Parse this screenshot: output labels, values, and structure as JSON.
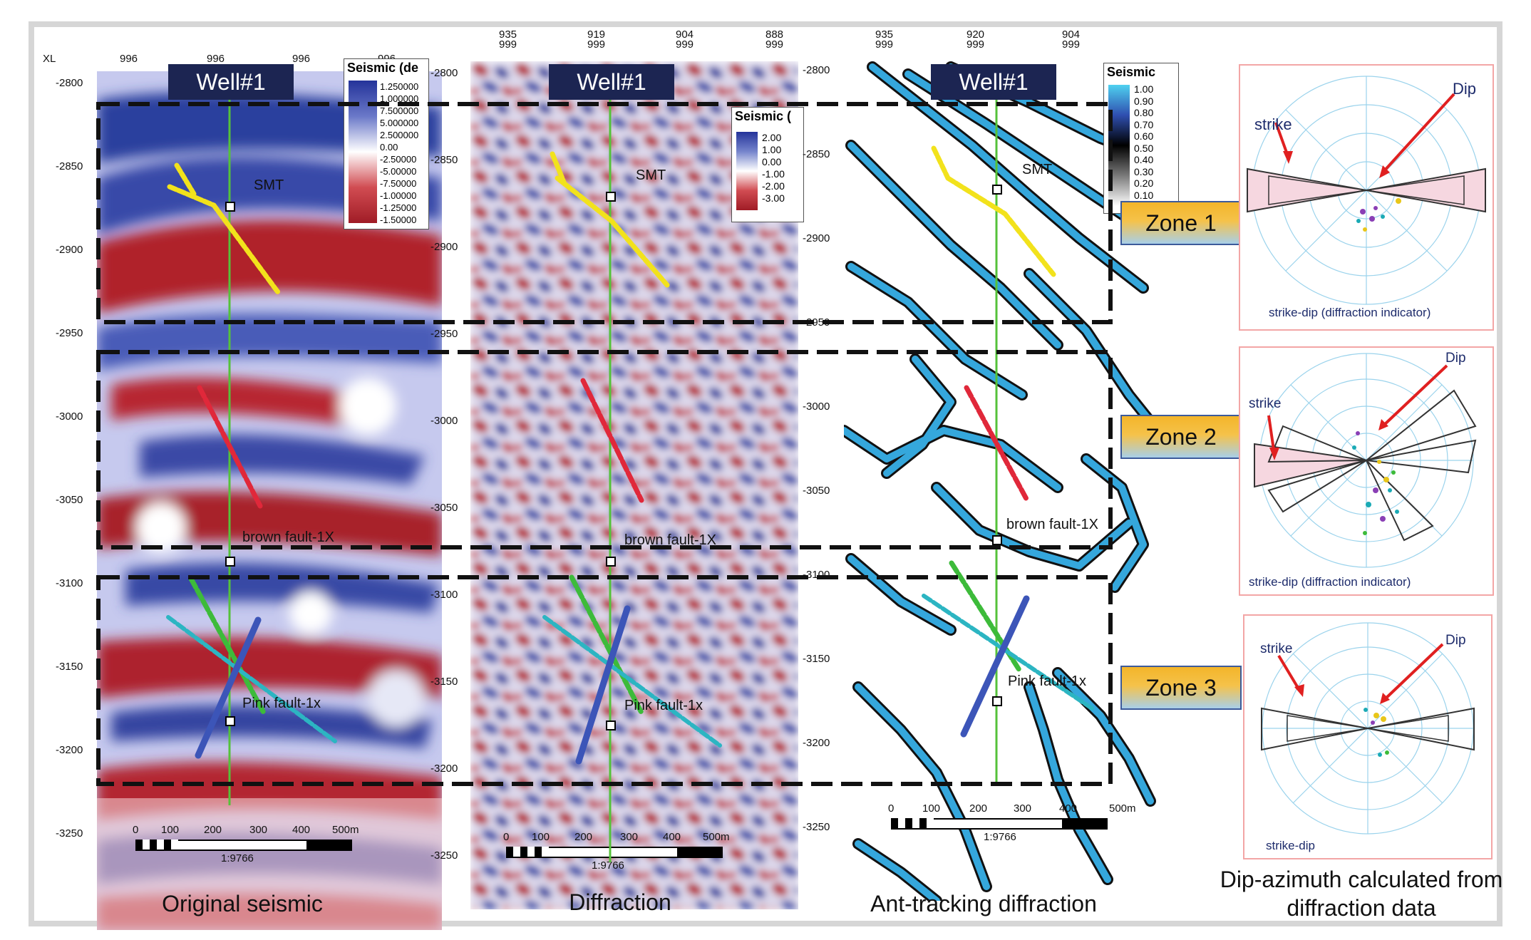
{
  "panels": [
    {
      "key": "original",
      "caption": "Original seismic",
      "well": "Well#1",
      "axis_label": "XL",
      "ticks_top": [
        "996",
        "996",
        "996",
        "996"
      ],
      "ticks_left": [
        "-2800",
        "-2850",
        "-2900",
        "-2950",
        "-3000",
        "-3050",
        "-3100",
        "-3150",
        "-3200",
        "-3250"
      ],
      "legend_title": "Seismic (de",
      "legend_values": [
        "1.250000",
        "1.000000",
        "7.500000",
        "5.000000",
        "2.500000",
        "0.00",
        "-2.50000",
        "-5.00000",
        "-7.50000",
        "-1.00000",
        "-1.25000",
        "-1.50000"
      ],
      "annotations": [
        "SMT",
        "brown fault-1X",
        "Pink fault-1x"
      ],
      "scale_ticks": [
        "0",
        "100",
        "200",
        "300",
        "400",
        "500m"
      ],
      "scale_ratio": "1:9766"
    },
    {
      "key": "diffraction",
      "caption": "Diffraction",
      "well": "Well#1",
      "ticks_top": [
        "935",
        "999",
        "919",
        "999",
        "904",
        "999",
        "888",
        "999"
      ],
      "ticks_left": [
        "-2800",
        "-2850",
        "-2900",
        "-2950",
        "-3000",
        "-3050",
        "-3100",
        "-3150",
        "-3200",
        "-3250"
      ],
      "legend_title": "Seismic (",
      "legend_values": [
        "2.00",
        "1.00",
        "0.00",
        "-1.00",
        "-2.00",
        "-3.00"
      ],
      "annotations": [
        "SMT",
        "brown fault-1X",
        "Pink fault-1x"
      ],
      "scale_ticks": [
        "0",
        "100",
        "200",
        "300",
        "400",
        "500m"
      ],
      "scale_ratio": "1:9766"
    },
    {
      "key": "anttracking",
      "caption": "Ant-tracking diffraction",
      "well": "Well#1",
      "ticks_top": [
        "935",
        "999",
        "920",
        "999",
        "904",
        "999"
      ],
      "ticks_left": [
        "-2800",
        "-2850",
        "-2900",
        "-2950",
        "-3000",
        "-3050",
        "-3100",
        "-3150",
        "-3200",
        "-3250"
      ],
      "legend_title": "Seismic",
      "legend_values": [
        "1.00",
        "0.90",
        "0.80",
        "0.70",
        "0.60",
        "0.50",
        "0.40",
        "0.30",
        "0.20",
        "0.10"
      ],
      "annotations": [
        "SMT",
        "brown fault-1X",
        "Pink fault-1x"
      ],
      "scale_ticks": [
        "0",
        "100",
        "200",
        "300",
        "400",
        "500m"
      ],
      "scale_ratio": "1:9766"
    }
  ],
  "zones": [
    "Zone 1",
    "Zone 2",
    "Zone 3"
  ],
  "roses": [
    {
      "strike": "strike",
      "dip": "Dip",
      "caption": "strike-dip (diffraction indicator)"
    },
    {
      "strike": "strike",
      "dip": "Dip",
      "caption": "strike-dip (diffraction indicator)"
    },
    {
      "strike": "strike",
      "dip": "Dip",
      "caption": "strike-dip"
    }
  ],
  "roses_caption_line1": "Dip-azimuth calculated from",
  "roses_caption_line2": "diffraction data",
  "colors": {
    "blue": "#2a3f9e",
    "red": "#b0202a",
    "ant_blue": "#35a7dc",
    "well": "#55c23a",
    "fault_yellow": "#f2e21c",
    "fault_red": "#e0283a",
    "fault_green": "#3dbb3a",
    "fault_cyan": "#2cb5c2",
    "fault_blue": "#3c55b8"
  }
}
